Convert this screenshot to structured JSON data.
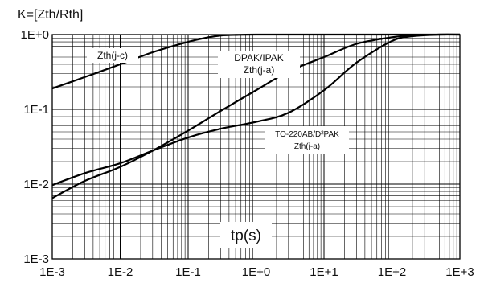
{
  "chart_data": {
    "type": "line",
    "title": "K=[Zth/Rth]",
    "xlabel": "tp(s)",
    "ylabel": "",
    "xscale": "log",
    "yscale": "log",
    "xlim": [
      0.001,
      1000
    ],
    "ylim": [
      0.001,
      1
    ],
    "grid": true,
    "x_ticks": [
      "1E-3",
      "1E-2",
      "1E-1",
      "1E+0",
      "1E+1",
      "1E+2",
      "1E+3"
    ],
    "y_ticks": [
      "1E-3",
      "1E-2",
      "1E-1",
      "1E+0"
    ],
    "series": [
      {
        "name": "Zth(j-c)",
        "label_lines": [
          "Zth(j-c)"
        ],
        "x": [
          0.001,
          0.003,
          0.01,
          0.03,
          0.1,
          0.2,
          0.3,
          0.5,
          1,
          10,
          100,
          1000
        ],
        "y": [
          0.19,
          0.27,
          0.4,
          0.58,
          0.8,
          0.92,
          0.97,
          0.99,
          1.0,
          1.0,
          1.0,
          1.0
        ]
      },
      {
        "name": "DPAK/IPAK Zth(j-a)",
        "label_lines": [
          "DPAK/IPAK",
          "Zth(j-a)"
        ],
        "x": [
          0.001,
          0.003,
          0.01,
          0.03,
          0.1,
          0.3,
          1,
          3,
          10,
          30,
          100,
          200,
          500,
          1000
        ],
        "y": [
          0.0065,
          0.011,
          0.017,
          0.028,
          0.052,
          0.095,
          0.18,
          0.32,
          0.5,
          0.75,
          0.92,
          0.98,
          1.0,
          1.0
        ]
      },
      {
        "name": "TO-220AB/D²PAK Zth(j-a)",
        "label_lines": [
          "TO-220AB/D²PAK",
          "Zth(j-a)"
        ],
        "x": [
          0.001,
          0.003,
          0.01,
          0.03,
          0.1,
          0.3,
          1,
          3,
          10,
          30,
          100,
          200,
          500,
          1000
        ],
        "y": [
          0.0097,
          0.014,
          0.019,
          0.028,
          0.042,
          0.055,
          0.068,
          0.09,
          0.18,
          0.42,
          0.82,
          0.95,
          1.0,
          1.0
        ]
      }
    ]
  }
}
